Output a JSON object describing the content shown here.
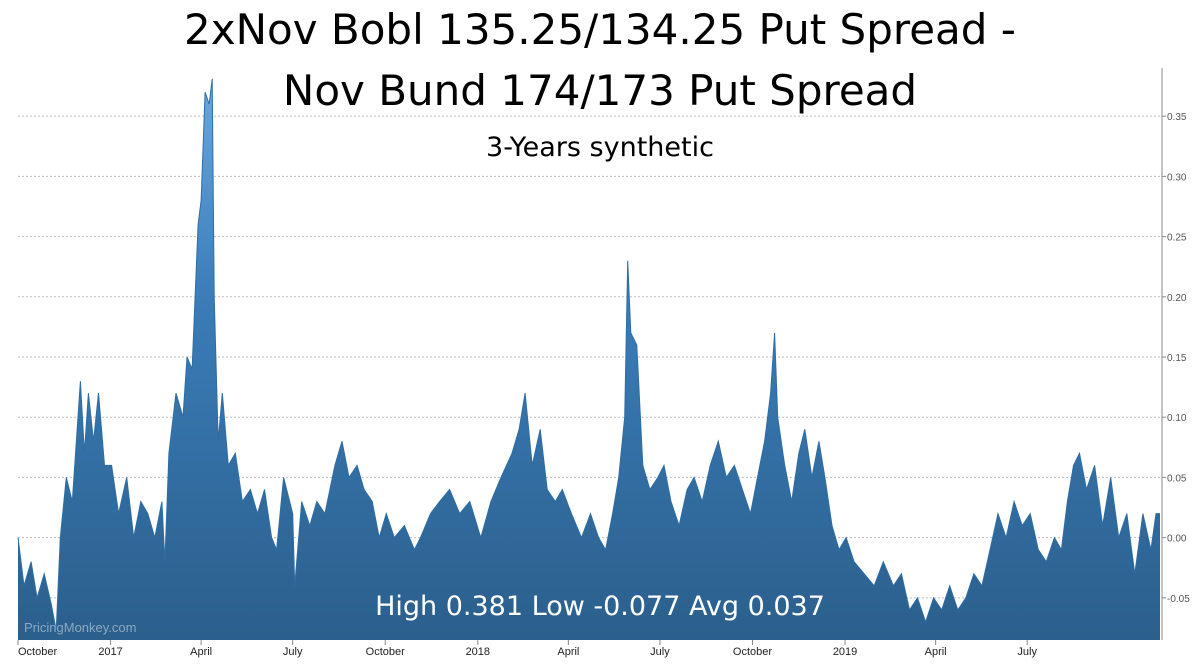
{
  "chart_data": {
    "type": "area",
    "title": "2xNov Bobl 135.25/134.25 Put Spread -",
    "title_line2": "Nov Bund 174/173 Put Spread",
    "subtitle": "3-Years synthetic",
    "summary": "High 0.381 Low -0.077 Avg 0.037",
    "watermark": "PricingMonkey.com",
    "ylim": [
      -0.085,
      0.39
    ],
    "y_ticks": [
      -0.05,
      0.0,
      0.05,
      0.1,
      0.15,
      0.2,
      0.25,
      0.3,
      0.35
    ],
    "y_tick_labels": [
      "-0.05",
      "0.00",
      "0.05",
      "0.10",
      "0.15",
      "0.20",
      "0.25",
      "0.30",
      "0.35"
    ],
    "grid": true,
    "x_start": "2016-10-01",
    "x_end": "2019-11-10",
    "x_ticks": [
      "2016-10-01",
      "2017-01-01",
      "2017-04-01",
      "2017-07-01",
      "2017-10-01",
      "2018-01-01",
      "2018-04-01",
      "2018-07-01",
      "2018-10-01",
      "2019-01-01",
      "2019-04-01",
      "2019-07-01"
    ],
    "x_tick_labels": [
      "October",
      "2017",
      "April",
      "July",
      "October",
      "2018",
      "April",
      "July",
      "October",
      "2019",
      "April",
      "July"
    ],
    "series": [
      {
        "color": "#2e6da4",
        "points": [
          [
            "2016-10-01",
            0.0
          ],
          [
            "2016-10-07",
            -0.04
          ],
          [
            "2016-10-14",
            -0.02
          ],
          [
            "2016-10-20",
            -0.05
          ],
          [
            "2016-10-27",
            -0.03
          ],
          [
            "2016-11-03",
            -0.055
          ],
          [
            "2016-11-08",
            -0.077
          ],
          [
            "2016-11-12",
            0.0
          ],
          [
            "2016-11-18",
            0.05
          ],
          [
            "2016-11-24",
            0.03
          ],
          [
            "2016-12-02",
            0.13
          ],
          [
            "2016-12-06",
            0.07
          ],
          [
            "2016-12-10",
            0.12
          ],
          [
            "2016-12-15",
            0.08
          ],
          [
            "2016-12-20",
            0.12
          ],
          [
            "2016-12-26",
            0.06
          ],
          [
            "2017-01-02",
            0.06
          ],
          [
            "2017-01-09",
            0.02
          ],
          [
            "2017-01-17",
            0.05
          ],
          [
            "2017-01-24",
            0.0
          ],
          [
            "2017-01-31",
            0.03
          ],
          [
            "2017-02-07",
            0.02
          ],
          [
            "2017-02-14",
            0.0
          ],
          [
            "2017-02-21",
            0.03
          ],
          [
            "2017-02-24",
            -0.02
          ],
          [
            "2017-02-28",
            0.07
          ],
          [
            "2017-03-07",
            0.12
          ],
          [
            "2017-03-14",
            0.1
          ],
          [
            "2017-03-18",
            0.15
          ],
          [
            "2017-03-23",
            0.14
          ],
          [
            "2017-03-29",
            0.26
          ],
          [
            "2017-04-01",
            0.28
          ],
          [
            "2017-04-05",
            0.37
          ],
          [
            "2017-04-09",
            0.36
          ],
          [
            "2017-04-12",
            0.381
          ],
          [
            "2017-04-14",
            0.2
          ],
          [
            "2017-04-18",
            0.08
          ],
          [
            "2017-04-22",
            0.12
          ],
          [
            "2017-04-28",
            0.06
          ],
          [
            "2017-05-05",
            0.07
          ],
          [
            "2017-05-12",
            0.03
          ],
          [
            "2017-05-20",
            0.04
          ],
          [
            "2017-05-27",
            0.02
          ],
          [
            "2017-06-03",
            0.04
          ],
          [
            "2017-06-10",
            0.0
          ],
          [
            "2017-06-15",
            -0.01
          ],
          [
            "2017-06-22",
            0.05
          ],
          [
            "2017-07-01",
            0.02
          ],
          [
            "2017-07-03",
            -0.04
          ],
          [
            "2017-07-10",
            0.03
          ],
          [
            "2017-07-18",
            0.01
          ],
          [
            "2017-07-25",
            0.03
          ],
          [
            "2017-08-02",
            0.02
          ],
          [
            "2017-08-12",
            0.06
          ],
          [
            "2017-08-19",
            0.08
          ],
          [
            "2017-08-26",
            0.05
          ],
          [
            "2017-09-03",
            0.06
          ],
          [
            "2017-09-10",
            0.04
          ],
          [
            "2017-09-18",
            0.03
          ],
          [
            "2017-09-25",
            0.0
          ],
          [
            "2017-10-02",
            0.02
          ],
          [
            "2017-10-10",
            0.0
          ],
          [
            "2017-10-20",
            0.01
          ],
          [
            "2017-10-30",
            -0.01
          ],
          [
            "2017-11-05",
            0.0
          ],
          [
            "2017-11-15",
            0.02
          ],
          [
            "2017-11-24",
            0.03
          ],
          [
            "2017-12-04",
            0.04
          ],
          [
            "2017-12-14",
            0.02
          ],
          [
            "2017-12-24",
            0.03
          ],
          [
            "2018-01-04",
            0.0
          ],
          [
            "2018-01-14",
            0.03
          ],
          [
            "2018-01-24",
            0.05
          ],
          [
            "2018-02-04",
            0.07
          ],
          [
            "2018-02-11",
            0.09
          ],
          [
            "2018-02-17",
            0.12
          ],
          [
            "2018-02-24",
            0.06
          ],
          [
            "2018-03-04",
            0.09
          ],
          [
            "2018-03-11",
            0.04
          ],
          [
            "2018-03-19",
            0.03
          ],
          [
            "2018-03-26",
            0.04
          ],
          [
            "2018-04-04",
            0.02
          ],
          [
            "2018-04-14",
            0.0
          ],
          [
            "2018-04-23",
            0.02
          ],
          [
            "2018-05-01",
            0.0
          ],
          [
            "2018-05-08",
            -0.01
          ],
          [
            "2018-05-15",
            0.02
          ],
          [
            "2018-05-21",
            0.05
          ],
          [
            "2018-05-27",
            0.1
          ],
          [
            "2018-05-30",
            0.23
          ],
          [
            "2018-06-02",
            0.17
          ],
          [
            "2018-06-08",
            0.16
          ],
          [
            "2018-06-14",
            0.06
          ],
          [
            "2018-06-21",
            0.04
          ],
          [
            "2018-06-29",
            0.05
          ],
          [
            "2018-07-05",
            0.06
          ],
          [
            "2018-07-12",
            0.03
          ],
          [
            "2018-07-20",
            0.01
          ],
          [
            "2018-07-28",
            0.04
          ],
          [
            "2018-08-04",
            0.05
          ],
          [
            "2018-08-12",
            0.03
          ],
          [
            "2018-08-20",
            0.06
          ],
          [
            "2018-08-28",
            0.08
          ],
          [
            "2018-09-05",
            0.05
          ],
          [
            "2018-09-13",
            0.06
          ],
          [
            "2018-09-21",
            0.04
          ],
          [
            "2018-09-29",
            0.02
          ],
          [
            "2018-10-06",
            0.05
          ],
          [
            "2018-10-13",
            0.08
          ],
          [
            "2018-10-19",
            0.12
          ],
          [
            "2018-10-23",
            0.17
          ],
          [
            "2018-10-26",
            0.1
          ],
          [
            "2018-11-02",
            0.06
          ],
          [
            "2018-11-09",
            0.03
          ],
          [
            "2018-11-16",
            0.07
          ],
          [
            "2018-11-22",
            0.09
          ],
          [
            "2018-11-29",
            0.05
          ],
          [
            "2018-12-06",
            0.08
          ],
          [
            "2018-12-12",
            0.05
          ],
          [
            "2018-12-19",
            0.01
          ],
          [
            "2018-12-26",
            -0.01
          ],
          [
            "2019-01-02",
            0.0
          ],
          [
            "2019-01-10",
            -0.02
          ],
          [
            "2019-01-20",
            -0.03
          ],
          [
            "2019-01-30",
            -0.04
          ],
          [
            "2019-02-08",
            -0.02
          ],
          [
            "2019-02-18",
            -0.04
          ],
          [
            "2019-02-26",
            -0.03
          ],
          [
            "2019-03-06",
            -0.06
          ],
          [
            "2019-03-14",
            -0.05
          ],
          [
            "2019-03-22",
            -0.07
          ],
          [
            "2019-03-30",
            -0.05
          ],
          [
            "2019-04-07",
            -0.06
          ],
          [
            "2019-04-15",
            -0.04
          ],
          [
            "2019-04-23",
            -0.06
          ],
          [
            "2019-05-01",
            -0.05
          ],
          [
            "2019-05-09",
            -0.03
          ],
          [
            "2019-05-17",
            -0.04
          ],
          [
            "2019-05-25",
            -0.01
          ],
          [
            "2019-06-02",
            0.02
          ],
          [
            "2019-06-10",
            0.0
          ],
          [
            "2019-06-18",
            0.03
          ],
          [
            "2019-06-26",
            0.01
          ],
          [
            "2019-07-04",
            0.02
          ],
          [
            "2019-07-12",
            -0.01
          ],
          [
            "2019-07-20",
            -0.02
          ],
          [
            "2019-07-28",
            0.0
          ],
          [
            "2019-08-04",
            -0.01
          ],
          [
            "2019-08-10",
            0.03
          ],
          [
            "2019-08-16",
            0.06
          ],
          [
            "2019-08-22",
            0.07
          ],
          [
            "2019-08-29",
            0.04
          ],
          [
            "2019-09-06",
            0.06
          ],
          [
            "2019-09-14",
            0.01
          ],
          [
            "2019-09-22",
            0.05
          ],
          [
            "2019-09-30",
            0.0
          ],
          [
            "2019-10-08",
            0.02
          ],
          [
            "2019-10-16",
            -0.03
          ],
          [
            "2019-10-24",
            0.02
          ],
          [
            "2019-11-01",
            -0.01
          ],
          [
            "2019-11-06",
            0.02
          ],
          [
            "2019-11-10",
            0.02
          ]
        ]
      }
    ]
  }
}
